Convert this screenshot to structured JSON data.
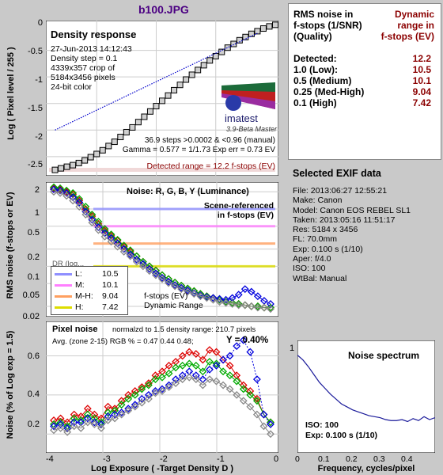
{
  "title": "b100.JPG",
  "density_panel": {
    "heading": "Density response",
    "info": [
      "27-Jun-2013 14:12:43",
      "Density step = 0.1",
      "4339x357 crop of",
      "5184x3456 pixels",
      "24-bit color"
    ],
    "stats": [
      "36.9 steps >0.0002 & <0.96 (manual)",
      "Gamma = 0.577 = 1/1.73  Exp err = 0.73 EV"
    ],
    "detected_range": "Detected range = 12.2 f-stops (EV)",
    "logo_text": "imatest",
    "version": "3.9-Beta  Master",
    "ylabel": "Log ( Pixel level / 255 )",
    "yticks": [
      "0",
      "-0.5",
      "-1",
      "-1.5",
      "-2",
      "-2.5"
    ]
  },
  "noise_panel": {
    "heading": "Noise: R, G, B, Y (Luminance)",
    "note": [
      "Scene-referenced",
      "in f-stops (EV)"
    ],
    "ylabel": "RMS noise (f-stops or EV)",
    "yticks": [
      "2",
      "1",
      "0.5",
      "0.2",
      "0.1",
      "0.05",
      "0.02"
    ],
    "partial_label": "DR (log...",
    "legend": [
      {
        "key": "L:",
        "value": "10.5",
        "color": "#8f8fff"
      },
      {
        "key": "M:",
        "value": "10.1",
        "color": "#ff7fff"
      },
      {
        "key": "M-H:",
        "value": "9.04",
        "color": "#ffa060"
      },
      {
        "key": "H:",
        "value": "7.42",
        "color": "#dddd00"
      }
    ],
    "dr_caption": [
      "f-stops (EV)",
      "Dynamic Range"
    ]
  },
  "pixel_panel": {
    "heading": "Pixel noise",
    "normalized": "normalzd to 1.5 density range: 210.7 pixels",
    "avg_text": "Avg. (zone 2-15) RGB % = 0.47  0.44  0.48;",
    "y_text": "Y = 0.40%",
    "ylabel": "Noise (% of Log exp = 1.5)",
    "yticks": [
      "0.6",
      "0.4",
      "0.2"
    ],
    "xticks": [
      "-4",
      "-3",
      "-2",
      "-1",
      "0"
    ],
    "xlabel": "Log Exposure ( -Target Density D )"
  },
  "spectrum_panel": {
    "title": "Noise spectrum",
    "iso": "ISO:   100",
    "exp": "Exp:   0.100 s   (1/10)",
    "xticks": [
      "0",
      "0.1",
      "0.2",
      "0.3",
      "0.4"
    ],
    "ytick": "1",
    "xlabel": "Frequency, cycles/pixel"
  },
  "rms_table": {
    "header_left": [
      "RMS noise in",
      "f-stops (1/SNR)",
      "(Quality)"
    ],
    "header_right": [
      "Dynamic",
      "range in",
      "f-stops (EV)"
    ],
    "rows": [
      {
        "label": "Detected:",
        "value": "12.2",
        "bold": true
      },
      {
        "label": "1.0   (Low):",
        "value": "10.5",
        "bold": true
      },
      {
        "label": "0.5   (Medium)",
        "value": "10.1",
        "bold": true
      },
      {
        "label": "0.25 (Med-High)",
        "value": "9.04",
        "bold": true
      },
      {
        "label": "0.1   (High)",
        "value": "7.42",
        "bold": true
      }
    ]
  },
  "exif": {
    "title": "Selected EXIF data",
    "lines": [
      "File:  2013:06:27 12:55:21",
      "Make:  Canon",
      "Model: Canon EOS REBEL SL1",
      "Taken:  2013:05:16 11:51:17",
      "Res:   5184 x 3456",
      "FL:  70.0mm",
      "Exp:   0.100 s  (1/10)",
      "Aper:  f/4.0",
      "ISO:   100",
      "WtBal: Manual"
    ]
  },
  "colors": {
    "red": "#dd0000",
    "green": "#00aa00",
    "blue": "#0000dd",
    "gray": "#888888",
    "dark_red": "#8b0000"
  },
  "chart_data": [
    {
      "type": "line",
      "title": "Density response",
      "xlabel": "Log Exposure ( -Target Density D )",
      "ylabel": "Log ( Pixel level / 255 )",
      "xlim": [
        -3.8,
        0
      ],
      "ylim": [
        -2.8,
        0
      ],
      "series": [
        {
          "values_x": [
            -3.7,
            -3.6,
            -3.5,
            -3.4,
            -3.3,
            -3.2,
            -3.1,
            -3.0,
            -2.9,
            -2.8,
            -2.7,
            -2.6,
            -2.5,
            -2.4,
            -2.3,
            -2.2,
            -2.1,
            -2.0,
            -1.9,
            -1.8,
            -1.7,
            -1.6,
            -1.5,
            -1.4,
            -1.3,
            -1.2,
            -1.1,
            -1.0,
            -0.9,
            -0.8,
            -0.7,
            -0.6,
            -0.5,
            -0.4,
            -0.3,
            -0.2,
            -0.1,
            0.0
          ],
          "values_y": [
            -2.75,
            -2.72,
            -2.69,
            -2.66,
            -2.62,
            -2.57,
            -2.51,
            -2.45,
            -2.38,
            -2.3,
            -2.22,
            -2.13,
            -2.04,
            -1.95,
            -1.85,
            -1.75,
            -1.65,
            -1.55,
            -1.45,
            -1.35,
            -1.25,
            -1.15,
            -1.05,
            -0.96,
            -0.87,
            -0.78,
            -0.69,
            -0.61,
            -0.53,
            -0.45,
            -0.38,
            -0.31,
            -0.25,
            -0.19,
            -0.14,
            -0.09,
            -0.05,
            -0.02
          ]
        },
        {
          "values_x": [
            -3.7,
            -0.3
          ],
          "values_y": [
            -2.0,
            -0.18
          ]
        }
      ]
    },
    {
      "type": "line",
      "title": "Noise: R, G, B, Y (Luminance)",
      "ylabel": "RMS noise (f-stops or EV)",
      "xlim": [
        -3.8,
        0
      ],
      "ylim": [
        0.015,
        2.6
      ],
      "thresholds": [
        1.0,
        0.5,
        0.25,
        0.1
      ],
      "series": [
        {
          "name": "R",
          "values": [
            2.3,
            2.2,
            2.0,
            1.8,
            1.4,
            1.0,
            0.75,
            0.55,
            0.42,
            0.34,
            0.28,
            0.22,
            0.18,
            0.15,
            0.12,
            0.1,
            0.085,
            0.07,
            0.06,
            0.052,
            0.046,
            0.041,
            0.037,
            0.033,
            0.03,
            0.028,
            0.026,
            0.024,
            0.023,
            0.022,
            0.021,
            0.02,
            0.02,
            0.019,
            0.019
          ]
        },
        {
          "name": "G",
          "values": [
            2.4,
            2.3,
            2.1,
            1.9,
            1.5,
            1.1,
            0.8,
            0.6,
            0.45,
            0.36,
            0.29,
            0.23,
            0.19,
            0.15,
            0.12,
            0.1,
            0.084,
            0.07,
            0.06,
            0.052,
            0.046,
            0.041,
            0.037,
            0.033,
            0.03,
            0.028,
            0.026,
            0.024,
            0.023,
            0.022,
            0.021,
            0.02,
            0.02,
            0.019,
            0.019
          ]
        },
        {
          "name": "B",
          "values": [
            2.2,
            2.1,
            1.9,
            1.6,
            1.3,
            0.9,
            0.65,
            0.48,
            0.38,
            0.31,
            0.25,
            0.2,
            0.16,
            0.13,
            0.11,
            0.09,
            0.075,
            0.063,
            0.054,
            0.047,
            0.042,
            0.038,
            0.034,
            0.031,
            0.029,
            0.028,
            0.027,
            0.026,
            0.028,
            0.032,
            0.04,
            0.036,
            0.03,
            0.025,
            0.022
          ]
        },
        {
          "name": "Y",
          "values": [
            2.0,
            1.9,
            1.7,
            1.4,
            1.1,
            0.8,
            0.58,
            0.43,
            0.33,
            0.27,
            0.22,
            0.18,
            0.15,
            0.12,
            0.1,
            0.083,
            0.07,
            0.06,
            0.051,
            0.045,
            0.04,
            0.036,
            0.033,
            0.03,
            0.028,
            0.026,
            0.024,
            0.023,
            0.022,
            0.021,
            0.021,
            0.02,
            0.019,
            0.019,
            0.018
          ]
        }
      ]
    },
    {
      "type": "line",
      "title": "Pixel noise",
      "xlabel": "Log Exposure ( -Target Density D )",
      "ylabel": "Noise (% of Log exp = 1.5)",
      "xlim": [
        -3.8,
        0
      ],
      "ylim": [
        0.12,
        0.76
      ],
      "series": [
        {
          "name": "R",
          "values": [
            0.27,
            0.28,
            0.26,
            0.3,
            0.29,
            0.33,
            0.3,
            0.28,
            0.34,
            0.33,
            0.37,
            0.4,
            0.42,
            0.44,
            0.46,
            0.5,
            0.52,
            0.55,
            0.57,
            0.6,
            0.62,
            0.61,
            0.58,
            0.63,
            0.62,
            0.58,
            0.55,
            0.5,
            0.45,
            0.42,
            0.38,
            0.3,
            0.26
          ]
        },
        {
          "name": "G",
          "values": [
            0.25,
            0.26,
            0.24,
            0.28,
            0.27,
            0.3,
            0.28,
            0.26,
            0.31,
            0.32,
            0.35,
            0.38,
            0.4,
            0.43,
            0.45,
            0.48,
            0.49,
            0.51,
            0.54,
            0.55,
            0.56,
            0.55,
            0.52,
            0.57,
            0.56,
            0.52,
            0.5,
            0.47,
            0.43,
            0.4,
            0.37,
            0.3,
            0.26
          ]
        },
        {
          "name": "B",
          "values": [
            0.24,
            0.25,
            0.23,
            0.26,
            0.26,
            0.28,
            0.26,
            0.25,
            0.29,
            0.3,
            0.31,
            0.33,
            0.35,
            0.38,
            0.4,
            0.42,
            0.43,
            0.45,
            0.48,
            0.5,
            0.52,
            0.5,
            0.48,
            0.53,
            0.55,
            0.58,
            0.6,
            0.65,
            0.68,
            0.62,
            0.48,
            0.3,
            0.25
          ]
        },
        {
          "name": "Y",
          "values": [
            0.22,
            0.23,
            0.21,
            0.24,
            0.23,
            0.26,
            0.25,
            0.23,
            0.27,
            0.28,
            0.3,
            0.32,
            0.34,
            0.36,
            0.38,
            0.41,
            0.42,
            0.44,
            0.46,
            0.48,
            0.49,
            0.48,
            0.45,
            0.48,
            0.47,
            0.45,
            0.43,
            0.4,
            0.37,
            0.34,
            0.3,
            0.24,
            0.2
          ]
        }
      ]
    },
    {
      "type": "line",
      "title": "Noise spectrum",
      "xlabel": "Frequency, cycles/pixel",
      "xlim": [
        0,
        0.5
      ],
      "ylim": [
        0,
        1.15
      ],
      "series": [
        {
          "values_x": [
            0,
            0.02,
            0.04,
            0.06,
            0.08,
            0.1,
            0.12,
            0.14,
            0.16,
            0.18,
            0.2,
            0.22,
            0.24,
            0.26,
            0.28,
            0.3,
            0.32,
            0.34,
            0.36,
            0.38,
            0.4,
            0.42,
            0.44,
            0.46,
            0.48,
            0.5
          ],
          "values_y": [
            1.0,
            0.95,
            0.88,
            0.8,
            0.72,
            0.66,
            0.6,
            0.55,
            0.5,
            0.47,
            0.44,
            0.42,
            0.4,
            0.38,
            0.37,
            0.36,
            0.34,
            0.33,
            0.33,
            0.34,
            0.32,
            0.35,
            0.33,
            0.37,
            0.34,
            0.36
          ]
        }
      ]
    }
  ]
}
